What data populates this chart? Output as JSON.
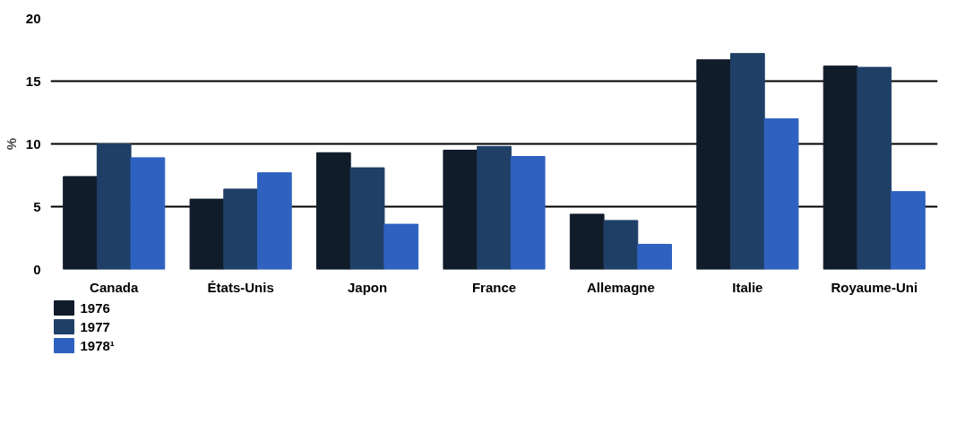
{
  "chart_data": {
    "type": "bar",
    "ylabel": "%",
    "categories": [
      "Canada",
      "États-Unis",
      "Japon",
      "France",
      "Allemagne",
      "Italie",
      "Royaume-Uni"
    ],
    "series": [
      {
        "name": "1976",
        "color": "#111c2b",
        "values": [
          7.4,
          5.6,
          9.3,
          9.5,
          4.4,
          16.7,
          16.2
        ]
      },
      {
        "name": "1977",
        "color": "#1f3f66",
        "values": [
          10.0,
          6.4,
          8.1,
          9.8,
          3.9,
          17.2,
          16.1
        ]
      },
      {
        "name": "1978¹",
        "color": "#2f62c0",
        "values": [
          8.9,
          7.7,
          3.6,
          9.0,
          2.0,
          12.0,
          6.2
        ]
      }
    ],
    "ylim": [
      0,
      20
    ],
    "yticks": [
      0,
      5,
      10,
      15,
      20
    ],
    "grid": "y",
    "legend": "bottom left"
  }
}
